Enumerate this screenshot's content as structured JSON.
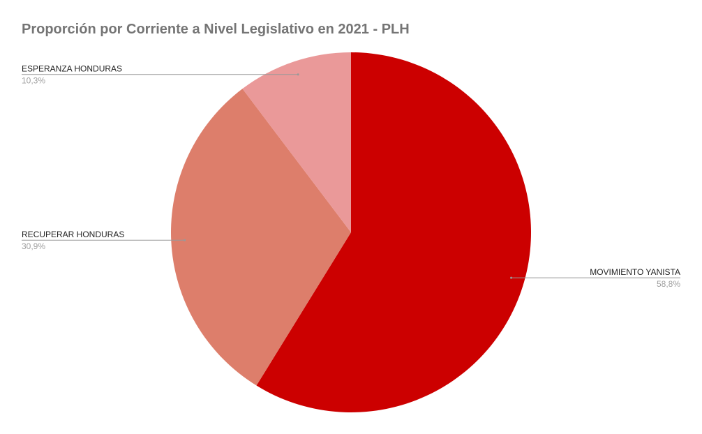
{
  "chart_data": {
    "type": "pie",
    "title": "Proporción por Corriente a Nivel Legislativo en 2021 - PLH",
    "slices": [
      {
        "label": "MOVIMIENTO YANISTA",
        "value": 58.8,
        "value_label": "58,8%",
        "color": "#cc0000"
      },
      {
        "label": "RECUPERAR HONDURAS",
        "value": 30.9,
        "value_label": "30,9%",
        "color": "#dd7e6b"
      },
      {
        "label": "ESPERANZA HONDURAS",
        "value": 10.3,
        "value_label": "10,3%",
        "color": "#ea9999"
      }
    ],
    "legend": "none",
    "label_style": "outside-with-leader-lines"
  }
}
